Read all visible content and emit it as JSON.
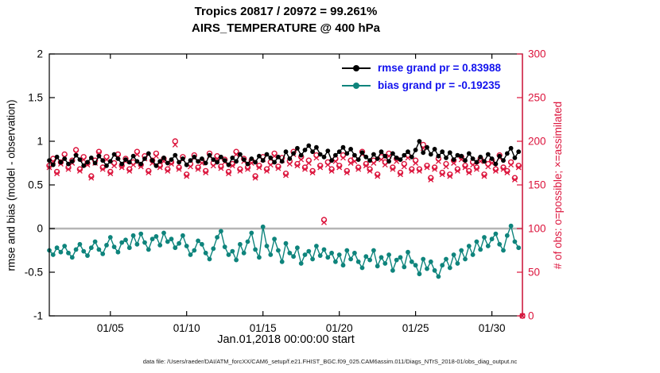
{
  "figure": {
    "title_line1": "Tropics 20817 / 20972 = 99.261%",
    "title_line2": "AIRS_TEMPERATURE @ 400 hPa",
    "xlabel": "Jan.01,2018 00:00:00 start",
    "ylabel_left": "rmse and bias (model - observation)",
    "ylabel_right": "# of obs: o=possible; ×=assimilated",
    "caption": "data file: /Users/raeder/DAI/ATM_forcXX/CAM6_setup/f.e21.FHIST_BGC.f09_025.CAM6assim.011/Diags_NTrS_2018-01/obs_diag_output.nc"
  },
  "legend": {
    "text_color": "#1212ee",
    "items": [
      {
        "label": "rmse grand pr = 0.83988",
        "color": "#000000"
      },
      {
        "label": "bias grand pr = -0.19235",
        "color": "#0e847c"
      }
    ]
  },
  "chart_data": {
    "type": "line",
    "title": "Tropics 20817 / 20972 = 99.261% — AIRS_TEMPERATURE @ 400 hPa",
    "grid": false,
    "legend_position": "top-right-inside",
    "zero_line_color": "#b5b5b5",
    "x_axis": {
      "label": "Jan.01,2018 00:00:00 start",
      "range": [
        1,
        32
      ],
      "tick_values": [
        5,
        10,
        15,
        20,
        25,
        30
      ],
      "tick_labels": [
        "01/05",
        "01/10",
        "01/15",
        "01/20",
        "01/25",
        "01/30"
      ]
    },
    "y_axis_left": {
      "label": "rmse and bias (model - observation)",
      "range": [
        -1,
        2
      ],
      "tick_values": [
        -1,
        -0.5,
        0,
        0.5,
        1,
        1.5,
        2
      ],
      "tick_labels": [
        "-1",
        "-0.5",
        "0",
        "0.5",
        "1",
        "1.5",
        "2"
      ]
    },
    "y_axis_right": {
      "label": "# of obs: o=possible; ×=assimilated",
      "range": [
        0,
        300
      ],
      "tick_values": [
        0,
        50,
        100,
        150,
        200,
        250,
        300
      ],
      "tick_labels": [
        "0",
        "50",
        "100",
        "150",
        "200",
        "250",
        "300"
      ],
      "color": "#dc143c"
    },
    "x": [
      1,
      1.25,
      1.5,
      1.75,
      2,
      2.25,
      2.5,
      2.75,
      3,
      3.25,
      3.5,
      3.75,
      4,
      4.25,
      4.5,
      4.75,
      5,
      5.25,
      5.5,
      5.75,
      6,
      6.25,
      6.5,
      6.75,
      7,
      7.25,
      7.5,
      7.75,
      8,
      8.25,
      8.5,
      8.75,
      9,
      9.25,
      9.5,
      9.75,
      10,
      10.25,
      10.5,
      10.75,
      11,
      11.25,
      11.5,
      11.75,
      12,
      12.25,
      12.5,
      12.75,
      13,
      13.25,
      13.5,
      13.75,
      14,
      14.25,
      14.5,
      14.75,
      15,
      15.25,
      15.5,
      15.75,
      16,
      16.25,
      16.5,
      16.75,
      17,
      17.25,
      17.5,
      17.75,
      18,
      18.25,
      18.5,
      18.75,
      19,
      19.25,
      19.5,
      19.75,
      20,
      20.25,
      20.5,
      20.75,
      21,
      21.25,
      21.5,
      21.75,
      22,
      22.25,
      22.5,
      22.75,
      23,
      23.25,
      23.5,
      23.75,
      24,
      24.25,
      24.5,
      24.75,
      25,
      25.25,
      25.5,
      25.75,
      26,
      26.25,
      26.5,
      26.75,
      27,
      27.25,
      27.5,
      27.75,
      28,
      28.25,
      28.5,
      28.75,
      29,
      29.25,
      29.5,
      29.75,
      30,
      30.25,
      30.5,
      30.75,
      31,
      31.25,
      31.5,
      31.75,
      32
    ],
    "series": [
      {
        "name": "rmse",
        "axis": "left",
        "color": "#000000",
        "marker": "filled-circle",
        "grand_value": 0.83988,
        "values": [
          0.78,
          0.73,
          0.82,
          0.76,
          0.8,
          0.74,
          0.77,
          0.84,
          0.79,
          0.72,
          0.76,
          0.81,
          0.75,
          0.83,
          0.78,
          0.72,
          0.77,
          0.85,
          0.8,
          0.74,
          0.79,
          0.76,
          0.83,
          0.77,
          0.74,
          0.8,
          0.86,
          0.78,
          0.72,
          0.77,
          0.81,
          0.75,
          0.79,
          0.84,
          0.76,
          0.8,
          0.73,
          0.78,
          0.82,
          0.77,
          0.8,
          0.75,
          0.84,
          0.79,
          0.76,
          0.82,
          0.78,
          0.73,
          0.81,
          0.77,
          0.85,
          0.79,
          0.74,
          0.8,
          0.76,
          0.83,
          0.78,
          0.85,
          0.81,
          0.76,
          0.82,
          0.77,
          0.88,
          0.8,
          0.86,
          0.92,
          0.84,
          0.9,
          0.95,
          0.88,
          0.93,
          0.85,
          0.82,
          0.89,
          0.78,
          0.84,
          0.88,
          0.93,
          0.86,
          0.91,
          0.84,
          0.79,
          0.87,
          0.82,
          0.78,
          0.85,
          0.8,
          0.88,
          0.83,
          0.77,
          0.86,
          0.81,
          0.79,
          0.84,
          0.88,
          0.82,
          0.9,
          1.0,
          0.87,
          0.93,
          0.85,
          0.91,
          0.83,
          0.88,
          0.81,
          0.87,
          0.79,
          0.84,
          0.83,
          0.78,
          0.86,
          0.8,
          0.76,
          0.82,
          0.77,
          0.85,
          0.8,
          0.74,
          0.83,
          0.78,
          0.86,
          0.92,
          0.81,
          0.88,
          null
        ]
      },
      {
        "name": "bias",
        "axis": "left",
        "color": "#0e847c",
        "marker": "filled-circle",
        "grand_value": -0.19235,
        "values": [
          -0.25,
          -0.3,
          -0.22,
          -0.27,
          -0.2,
          -0.28,
          -0.33,
          -0.24,
          -0.18,
          -0.26,
          -0.31,
          -0.22,
          -0.15,
          -0.24,
          -0.29,
          -0.19,
          -0.1,
          -0.21,
          -0.27,
          -0.16,
          -0.13,
          -0.22,
          -0.08,
          -0.18,
          -0.06,
          -0.16,
          -0.24,
          -0.12,
          -0.09,
          -0.19,
          -0.05,
          -0.15,
          -0.12,
          -0.22,
          -0.17,
          -0.08,
          -0.2,
          -0.3,
          -0.25,
          -0.14,
          -0.18,
          -0.28,
          -0.35,
          -0.23,
          -0.1,
          -0.03,
          -0.21,
          -0.3,
          -0.26,
          -0.36,
          -0.18,
          -0.28,
          -0.15,
          -0.05,
          -0.24,
          -0.33,
          0.02,
          -0.2,
          -0.3,
          -0.12,
          -0.25,
          -0.38,
          -0.17,
          -0.28,
          -0.32,
          -0.22,
          -0.4,
          -0.3,
          -0.26,
          -0.35,
          -0.2,
          -0.31,
          -0.24,
          -0.33,
          -0.28,
          -0.38,
          -0.3,
          -0.42,
          -0.25,
          -0.35,
          -0.28,
          -0.38,
          -0.45,
          -0.32,
          -0.36,
          -0.25,
          -0.43,
          -0.33,
          -0.4,
          -0.3,
          -0.48,
          -0.36,
          -0.33,
          -0.44,
          -0.27,
          -0.38,
          -0.42,
          -0.52,
          -0.35,
          -0.46,
          -0.38,
          -0.48,
          -0.55,
          -0.42,
          -0.35,
          -0.45,
          -0.3,
          -0.4,
          -0.25,
          -0.35,
          -0.2,
          -0.3,
          -0.15,
          -0.24,
          -0.1,
          -0.2,
          -0.12,
          -0.06,
          -0.18,
          -0.25,
          -0.08,
          0.03,
          -0.15,
          -0.22,
          null
        ]
      },
      {
        "name": "possible_obs",
        "axis": "right",
        "color": "#dc143c",
        "marker": "open-circle",
        "total": 20972,
        "values": [
          172,
          180,
          165,
          176,
          185,
          170,
          178,
          190,
          168,
          182,
          175,
          160,
          178,
          188,
          170,
          182,
          165,
          175,
          185,
          172,
          180,
          168,
          176,
          188,
          173,
          183,
          166,
          178,
          186,
          172,
          180,
          168,
          176,
          200,
          170,
          182,
          162,
          174,
          184,
          170,
          178,
          166,
          186,
          175,
          183,
          171,
          179,
          165,
          174,
          188,
          168,
          180,
          170,
          178,
          160,
          172,
          182,
          168,
          176,
          186,
          171,
          181,
          163,
          177,
          188,
          174,
          182,
          170,
          178,
          166,
          184,
          172,
          110,
          176,
          168,
          180,
          172,
          184,
          166,
          178,
          180,
          170,
          188,
          174,
          168,
          178,
          162,
          182,
          176,
          186,
          170,
          180,
          164,
          174,
          184,
          168,
          178,
          168,
          196,
          172,
          158,
          170,
          180,
          164,
          174,
          162,
          178,
          168,
          182,
          172,
          166,
          176,
          170,
          180,
          162,
          174,
          178,
          168,
          184,
          170,
          166,
          176,
          158,
          172,
          0
        ]
      },
      {
        "name": "assimilated_obs",
        "axis": "right",
        "color": "#dc143c",
        "marker": "x-cross",
        "total": 20817,
        "values": [
          170,
          177,
          163,
          174,
          182,
          168,
          175,
          187,
          166,
          179,
          173,
          158,
          175,
          186,
          168,
          179,
          163,
          172,
          182,
          170,
          177,
          166,
          173,
          185,
          171,
          180,
          164,
          175,
          183,
          170,
          177,
          166,
          174,
          196,
          168,
          179,
          160,
          171,
          181,
          168,
          175,
          164,
          183,
          172,
          180,
          169,
          176,
          163,
          172,
          185,
          166,
          177,
          168,
          175,
          158,
          170,
          179,
          166,
          173,
          183,
          169,
          178,
          161,
          174,
          185,
          172,
          179,
          168,
          175,
          164,
          181,
          170,
          107,
          173,
          166,
          177,
          170,
          181,
          164,
          175,
          177,
          168,
          185,
          172,
          166,
          175,
          160,
          179,
          173,
          183,
          168,
          177,
          162,
          171,
          181,
          166,
          175,
          166,
          192,
          170,
          156,
          168,
          177,
          162,
          171,
          160,
          175,
          166,
          179,
          170,
          164,
          173,
          168,
          177,
          160,
          171,
          175,
          166,
          181,
          168,
          164,
          173,
          156,
          170,
          0
        ]
      }
    ]
  }
}
